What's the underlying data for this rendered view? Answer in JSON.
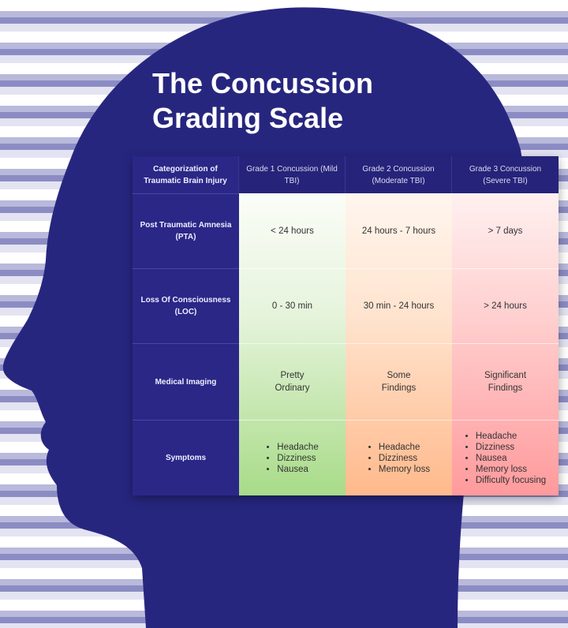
{
  "title": {
    "line1": "The Concussion",
    "line2": "Grading Scale"
  },
  "colors": {
    "head": "#27267f",
    "grade1": "#a8db88",
    "grade2": "#ffb98c",
    "grade3": "#ff9a9c"
  },
  "table": {
    "headers": [
      "Categorization of Traumatic Brain Injury",
      "Grade 1 Concussion (Mild TBI)",
      "Grade 2 Concussion (Moderate TBI)",
      "Grade 3 Concussion (Severe TBI)"
    ],
    "rows": [
      {
        "label": "Post Traumatic Amnesia (PTA)",
        "cells": [
          "< 24 hours",
          "24 hours - 7 hours",
          "> 7 days"
        ]
      },
      {
        "label": "Loss Of Consciousness (LOC)",
        "cells": [
          "0 - 30 min",
          "30 min - 24 hours",
          "> 24 hours"
        ]
      },
      {
        "label": "Medical Imaging",
        "cells": [
          "Pretty Ordinary",
          "Some Findings",
          "Significant Findings"
        ]
      },
      {
        "label": "Symptoms",
        "lists": [
          [
            "Headache",
            "Dizziness",
            "Nausea"
          ],
          [
            "Headache",
            "Dizziness",
            "Memory loss"
          ],
          [
            "Headache",
            "Dizziness",
            "Nausea",
            "Memory loss",
            "Difficulty focusing"
          ]
        ]
      }
    ]
  }
}
